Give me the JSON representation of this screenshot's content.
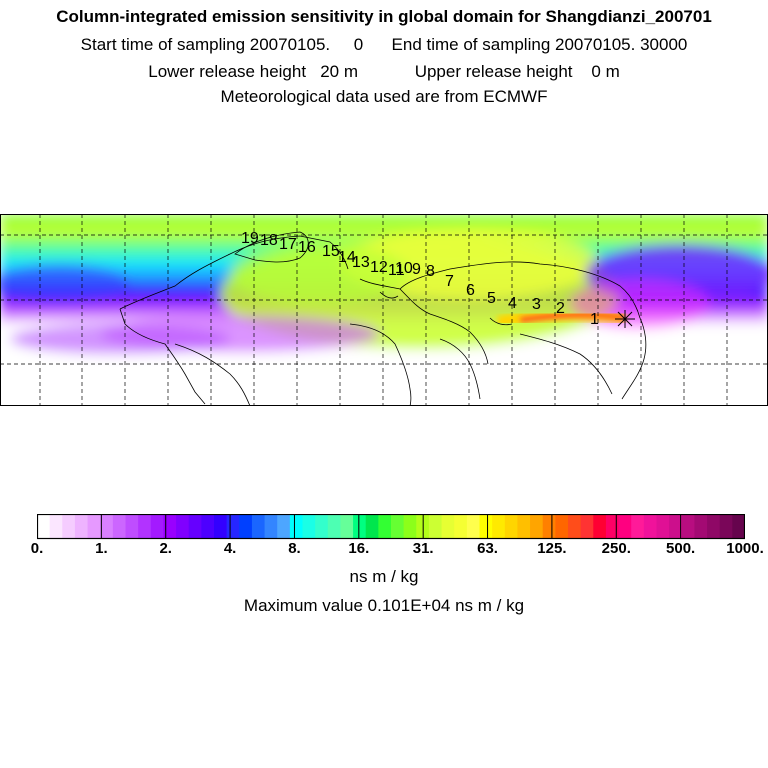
{
  "header": {
    "title": "Column-integrated emission sensitivity in global domain for Shangdianzi_200701",
    "sampling_line": "Start time of sampling 20070105.     0      End time of sampling 20070105. 30000",
    "release_line": "Lower release height   20 m            Upper release height    0 m",
    "met_line": "Meteorological data used are from ECMWF"
  },
  "map": {
    "trajectory_labels": [
      "1",
      "2",
      "3",
      "4",
      "5",
      "6",
      "7",
      "8",
      "9",
      "10",
      "11",
      "12",
      "13",
      "14",
      "15",
      "16",
      "17",
      "18",
      "19"
    ]
  },
  "colorbar": {
    "tick_labels": [
      "0.",
      "1.",
      "2.",
      "4.",
      "8.",
      "16.",
      "31.",
      "63.",
      "125.",
      "250.",
      "500.",
      "1000."
    ],
    "colors": [
      "#ffffff",
      "#fbe6ff",
      "#f5ccff",
      "#eeb3ff",
      "#e699ff",
      "#d980ff",
      "#cc66ff",
      "#bf4dff",
      "#b233ff",
      "#a31aff",
      "#9900ff",
      "#8000ff",
      "#6600ff",
      "#4d00ff",
      "#3300ff",
      "#2626ff",
      "#0040ff",
      "#1a66ff",
      "#3385ff",
      "#4da6ff",
      "#00ffff",
      "#1affe6",
      "#33ffcc",
      "#4dffb3",
      "#66ff99",
      "#00ff80",
      "#00e64d",
      "#33ff33",
      "#66ff33",
      "#8cff1a",
      "#b3ff1a",
      "#ccff33",
      "#e6ff33",
      "#f5ff33",
      "#ffff4d",
      "#ffff00",
      "#ffea00",
      "#ffd500",
      "#ffbf00",
      "#ffa500",
      "#ff8000",
      "#ff6600",
      "#ff4d1a",
      "#ff3333",
      "#ff0033",
      "#ff0066",
      "#ff0080",
      "#ff1a99",
      "#f0129b",
      "#e01095",
      "#cc0f8c",
      "#b80d80",
      "#a30a73",
      "#8f0866",
      "#7a0659",
      "#66044d"
    ],
    "units": "ns m / kg",
    "maximum": "Maximum value  0.101E+04 ns m / kg"
  },
  "colors": {
    "frame": "#000000",
    "background": "#ffffff"
  }
}
